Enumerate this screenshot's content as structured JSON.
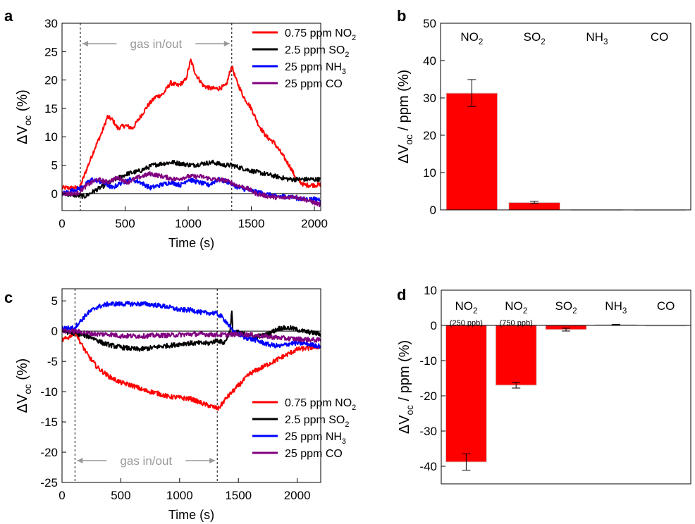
{
  "chart_data": [
    {
      "panel": "a",
      "type": "line",
      "xlabel": "Time (s)",
      "ylabel_main": "ΔV",
      "ylabel_sub": "oc",
      "ylabel_tail": " (%)",
      "xlim": [
        0,
        2050
      ],
      "ylim": [
        -3,
        30
      ],
      "xticks": [
        0,
        500,
        1000,
        1500,
        2000
      ],
      "yticks": [
        0,
        5,
        10,
        15,
        20,
        25,
        30
      ],
      "markers": [
        145,
        1345
      ],
      "annotation": "gas in/out",
      "series": [
        {
          "name_main": "0.75 ppm NO",
          "name_sub": "2",
          "color": "#ff0000",
          "points": [
            [
              0,
              1
            ],
            [
              100,
              1
            ],
            [
              140,
              1
            ],
            [
              190,
              4
            ],
            [
              260,
              8
            ],
            [
              320,
              11
            ],
            [
              360,
              13.5
            ],
            [
              400,
              13
            ],
            [
              440,
              11.5
            ],
            [
              500,
              12
            ],
            [
              560,
              11.5
            ],
            [
              620,
              13.5
            ],
            [
              680,
              15.5
            ],
            [
              740,
              17
            ],
            [
              800,
              17.5
            ],
            [
              860,
              19.5
            ],
            [
              920,
              19
            ],
            [
              980,
              20
            ],
            [
              1020,
              23.5
            ],
            [
              1060,
              21
            ],
            [
              1120,
              19
            ],
            [
              1180,
              18.5
            ],
            [
              1240,
              18.5
            ],
            [
              1300,
              19
            ],
            [
              1345,
              22.5
            ],
            [
              1380,
              20
            ],
            [
              1440,
              17
            ],
            [
              1500,
              15
            ],
            [
              1560,
              12
            ],
            [
              1620,
              10
            ],
            [
              1680,
              9
            ],
            [
              1740,
              7
            ],
            [
              1800,
              5
            ],
            [
              1860,
              2.5
            ],
            [
              1920,
              1.5
            ],
            [
              2050,
              1.5
            ]
          ]
        },
        {
          "name_main": "2.5 ppm SO",
          "name_sub": "2",
          "color": "#000000",
          "points": [
            [
              0,
              0
            ],
            [
              180,
              -0.5
            ],
            [
              260,
              0.5
            ],
            [
              340,
              1.5
            ],
            [
              420,
              2.5
            ],
            [
              520,
              3.5
            ],
            [
              620,
              4
            ],
            [
              720,
              5
            ],
            [
              800,
              5.3
            ],
            [
              880,
              5.5
            ],
            [
              960,
              5.2
            ],
            [
              1040,
              5
            ],
            [
              1120,
              5.3
            ],
            [
              1200,
              5.5
            ],
            [
              1280,
              5
            ],
            [
              1345,
              5
            ],
            [
              1420,
              4.5
            ],
            [
              1500,
              4
            ],
            [
              1600,
              3.5
            ],
            [
              1700,
              3
            ],
            [
              1800,
              2.5
            ],
            [
              1880,
              2.5
            ],
            [
              2050,
              2.5
            ]
          ]
        },
        {
          "name_main": "25 ppm NH",
          "name_sub": "3",
          "color": "#0000ff",
          "points": [
            [
              0,
              0
            ],
            [
              150,
              1
            ],
            [
              240,
              2.5
            ],
            [
              320,
              2
            ],
            [
              400,
              1
            ],
            [
              460,
              1.8
            ],
            [
              540,
              2.5
            ],
            [
              620,
              2
            ],
            [
              700,
              1
            ],
            [
              780,
              1.5
            ],
            [
              860,
              2
            ],
            [
              940,
              1.5
            ],
            [
              1000,
              2.5
            ],
            [
              1080,
              2
            ],
            [
              1160,
              1.5
            ],
            [
              1240,
              2.5
            ],
            [
              1320,
              2
            ],
            [
              1400,
              1
            ],
            [
              1500,
              0.5
            ],
            [
              1600,
              0
            ],
            [
              1700,
              -0.5
            ],
            [
              1800,
              -0.5
            ],
            [
              1900,
              -1
            ],
            [
              2050,
              -1
            ]
          ]
        },
        {
          "name_main": "25 ppm CO",
          "name_sub": "",
          "color": "#800080",
          "points": [
            [
              0,
              0
            ],
            [
              120,
              0
            ],
            [
              200,
              1.5
            ],
            [
              280,
              2.5
            ],
            [
              360,
              2
            ],
            [
              440,
              2.8
            ],
            [
              520,
              2
            ],
            [
              600,
              2.8
            ],
            [
              700,
              3.5
            ],
            [
              800,
              3
            ],
            [
              900,
              2.5
            ],
            [
              1000,
              3
            ],
            [
              1100,
              3
            ],
            [
              1200,
              2.5
            ],
            [
              1300,
              2.3
            ],
            [
              1380,
              1.5
            ],
            [
              1460,
              1
            ],
            [
              1540,
              0
            ],
            [
              1640,
              -0.5
            ],
            [
              1740,
              -0.8
            ],
            [
              1840,
              -0.5
            ],
            [
              1920,
              -1
            ],
            [
              2050,
              -2
            ]
          ]
        }
      ]
    },
    {
      "panel": "b",
      "type": "bar",
      "ylabel_main": "ΔV",
      "ylabel_sub": "oc",
      "ylabel_tail": " / ppm (%)",
      "ylim": [
        0,
        50
      ],
      "yticks": [
        0,
        10,
        20,
        30,
        40,
        50
      ],
      "categories": [
        {
          "main": "NO",
          "sub": "2"
        },
        {
          "main": "SO",
          "sub": "2"
        },
        {
          "main": "NH",
          "sub": "3"
        },
        {
          "main": "CO",
          "sub": ""
        }
      ],
      "values": [
        31.3,
        2.0,
        0.05,
        0.02
      ],
      "errors": [
        3.6,
        0.3,
        0,
        0
      ],
      "bar_color": "#ff0000"
    },
    {
      "panel": "c",
      "type": "line",
      "xlabel": "Time (s)",
      "ylabel_main": "ΔV",
      "ylabel_sub": "oc",
      "ylabel_tail": " (%)",
      "xlim": [
        0,
        2200
      ],
      "ylim": [
        -25,
        7
      ],
      "xticks": [
        0,
        500,
        1000,
        1500,
        2000
      ],
      "yticks": [
        -25,
        -20,
        -15,
        -10,
        -5,
        0,
        5
      ],
      "markers": [
        110,
        1320
      ],
      "annotation": "gas in/out",
      "series": [
        {
          "name_main": "0.75 ppm NO",
          "name_sub": "2",
          "color": "#ff0000",
          "points": [
            [
              0,
              -1.5
            ],
            [
              60,
              -1
            ],
            [
              110,
              0
            ],
            [
              160,
              -2
            ],
            [
              220,
              -4
            ],
            [
              300,
              -6
            ],
            [
              400,
              -7.5
            ],
            [
              500,
              -8.5
            ],
            [
              600,
              -9
            ],
            [
              700,
              -9.8
            ],
            [
              800,
              -10.2
            ],
            [
              900,
              -10.8
            ],
            [
              1000,
              -11
            ],
            [
              1100,
              -11.2
            ],
            [
              1200,
              -12
            ],
            [
              1280,
              -12.5
            ],
            [
              1330,
              -12.8
            ],
            [
              1400,
              -11
            ],
            [
              1500,
              -9
            ],
            [
              1600,
              -7
            ],
            [
              1700,
              -6
            ],
            [
              1800,
              -5
            ],
            [
              1900,
              -4
            ],
            [
              2000,
              -3
            ],
            [
              2100,
              -2.8
            ],
            [
              2200,
              -2.5
            ]
          ]
        },
        {
          "name_main": "2.5 ppm SO",
          "name_sub": "2",
          "color": "#000000",
          "points": [
            [
              0,
              0
            ],
            [
              150,
              -0.5
            ],
            [
              250,
              -1
            ],
            [
              350,
              -2
            ],
            [
              450,
              -2.5
            ],
            [
              550,
              -2.8
            ],
            [
              650,
              -3
            ],
            [
              750,
              -2.8
            ],
            [
              850,
              -2.5
            ],
            [
              950,
              -2.3
            ],
            [
              1050,
              -2
            ],
            [
              1150,
              -2
            ],
            [
              1250,
              -2
            ],
            [
              1320,
              -1.5
            ],
            [
              1380,
              -2
            ],
            [
              1430,
              0
            ],
            [
              1445,
              3.5
            ],
            [
              1450,
              0
            ],
            [
              1550,
              -0.5
            ],
            [
              1650,
              -1
            ],
            [
              1750,
              -0.5
            ],
            [
              1850,
              0.5
            ],
            [
              1950,
              0.5
            ],
            [
              2050,
              0
            ],
            [
              2200,
              -0.5
            ]
          ]
        },
        {
          "name_main": "25 ppm NH",
          "name_sub": "3",
          "color": "#0000ff",
          "points": [
            [
              0,
              0.5
            ],
            [
              100,
              0.5
            ],
            [
              150,
              1.5
            ],
            [
              220,
              3
            ],
            [
              300,
              4
            ],
            [
              400,
              4.5
            ],
            [
              500,
              4.5
            ],
            [
              600,
              4.5
            ],
            [
              700,
              4.5
            ],
            [
              800,
              4.3
            ],
            [
              900,
              4
            ],
            [
              1000,
              3.5
            ],
            [
              1100,
              3.5
            ],
            [
              1200,
              3
            ],
            [
              1300,
              3
            ],
            [
              1350,
              2.5
            ],
            [
              1400,
              1.5
            ],
            [
              1450,
              0
            ],
            [
              1550,
              -1
            ],
            [
              1650,
              -1.5
            ],
            [
              1750,
              -2.2
            ],
            [
              1850,
              -2.5
            ],
            [
              1950,
              -2
            ],
            [
              2050,
              -2
            ],
            [
              2200,
              -2.5
            ]
          ]
        },
        {
          "name_main": "25 ppm CO",
          "name_sub": "",
          "color": "#800080",
          "points": [
            [
              0,
              0
            ],
            [
              120,
              0
            ],
            [
              200,
              -0.3
            ],
            [
              300,
              -0.5
            ],
            [
              400,
              -0.5
            ],
            [
              500,
              -0.8
            ],
            [
              600,
              -0.8
            ],
            [
              700,
              -0.8
            ],
            [
              800,
              -0.7
            ],
            [
              900,
              -0.7
            ],
            [
              1000,
              -0.6
            ],
            [
              1100,
              -0.5
            ],
            [
              1200,
              -0.5
            ],
            [
              1300,
              -0.6
            ],
            [
              1400,
              -0.6
            ],
            [
              1500,
              -0.5
            ],
            [
              1600,
              -0.6
            ],
            [
              1700,
              -0.8
            ],
            [
              1800,
              -1
            ],
            [
              1900,
              -1.2
            ],
            [
              2000,
              -1.3
            ],
            [
              2200,
              -1.5
            ]
          ]
        }
      ]
    },
    {
      "panel": "d",
      "type": "bar",
      "ylabel_main": "ΔV",
      "ylabel_sub": "oc",
      "ylabel_tail": " / ppm (%)",
      "ylim": [
        -45,
        10
      ],
      "yticks": [
        -40,
        -30,
        -20,
        -10,
        0,
        10
      ],
      "categories": [
        {
          "main": "NO",
          "sub": "2",
          "note": "(250 ppb)"
        },
        {
          "main": "NO",
          "sub": "2",
          "note": "(750 ppb)"
        },
        {
          "main": "SO",
          "sub": "2",
          "note": ""
        },
        {
          "main": "NH",
          "sub": "3",
          "note": ""
        },
        {
          "main": "CO",
          "sub": "",
          "note": ""
        }
      ],
      "values": [
        -38.8,
        -17.0,
        -1.2,
        0.2,
        0.0
      ],
      "errors": [
        2.3,
        0.8,
        0.4,
        0.1,
        0
      ],
      "bar_color": "#ff0000"
    }
  ]
}
